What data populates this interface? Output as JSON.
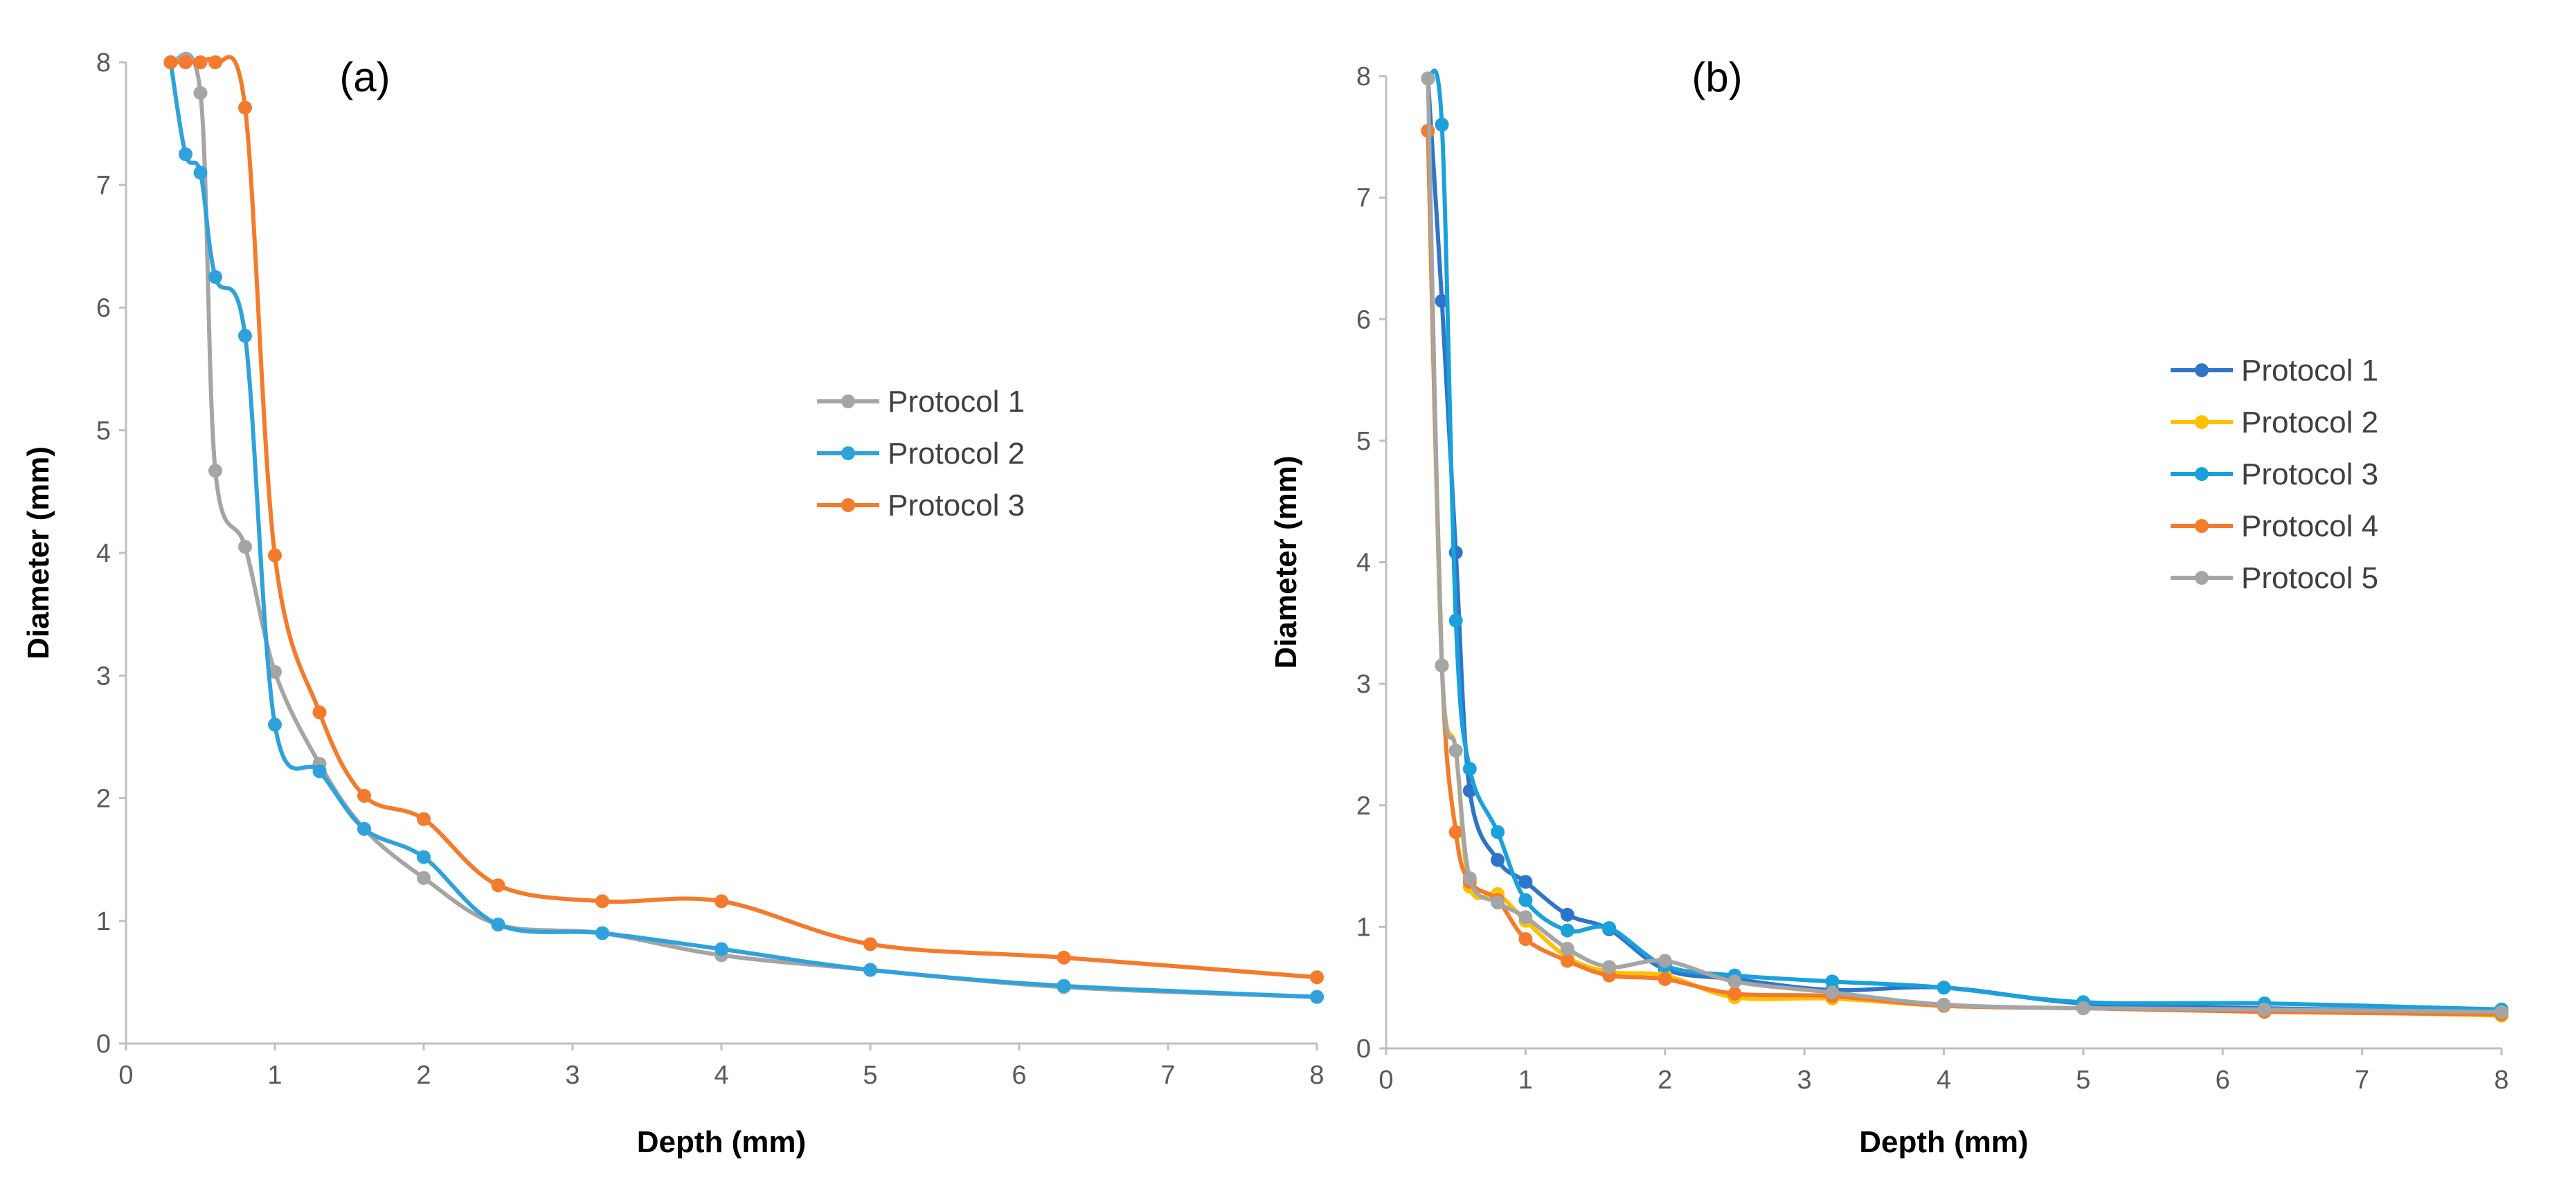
{
  "chart_data": [
    {
      "type": "line",
      "panel_label": "(a)",
      "xlabel": "Depth (mm)",
      "ylabel": "Diameter (mm)",
      "xlim": [
        0,
        8
      ],
      "ylim": [
        0,
        8
      ],
      "xticks": [
        0,
        1,
        2,
        3,
        4,
        5,
        6,
        7,
        8
      ],
      "yticks": [
        0,
        1,
        2,
        3,
        4,
        5,
        6,
        7,
        8
      ],
      "grid": false,
      "legend_position": "right-center",
      "series": [
        {
          "name": "Protocol 1",
          "color": "#A5A5A5",
          "x": [
            0.3,
            0.5,
            0.6,
            0.8,
            1.0,
            1.3,
            1.6,
            2.0,
            2.5,
            3.2,
            4.0,
            5.0,
            6.3,
            8.0
          ],
          "y": [
            8.0,
            7.75,
            4.67,
            4.05,
            3.03,
            2.28,
            1.75,
            1.35,
            0.97,
            0.9,
            0.72,
            0.6,
            0.46,
            0.38
          ]
        },
        {
          "name": "Protocol 2",
          "color": "#2FA2DC",
          "x": [
            0.3,
            0.4,
            0.5,
            0.6,
            0.8,
            1.0,
            1.3,
            1.6,
            2.0,
            2.5,
            3.2,
            4.0,
            5.0,
            6.3,
            8.0
          ],
          "y": [
            8.0,
            7.25,
            7.1,
            6.25,
            5.77,
            2.6,
            2.22,
            1.75,
            1.52,
            0.97,
            0.9,
            0.77,
            0.6,
            0.47,
            0.38
          ]
        },
        {
          "name": "Protocol 3",
          "color": "#F47A2C",
          "x": [
            0.3,
            0.4,
            0.5,
            0.6,
            0.8,
            1.0,
            1.3,
            1.6,
            2.0,
            2.5,
            3.2,
            4.0,
            5.0,
            6.3,
            8.0
          ],
          "y": [
            8.0,
            8.0,
            8.0,
            8.0,
            7.63,
            3.98,
            2.7,
            2.02,
            1.83,
            1.29,
            1.16,
            1.16,
            0.81,
            0.7,
            0.54
          ]
        }
      ]
    },
    {
      "type": "line",
      "panel_label": "(b)",
      "xlabel": "Depth (mm)",
      "ylabel": "Diameter (mm)",
      "xlim": [
        0,
        8
      ],
      "ylim": [
        0,
        8
      ],
      "xticks": [
        0,
        1,
        2,
        3,
        4,
        5,
        6,
        7,
        8
      ],
      "yticks": [
        0,
        1,
        2,
        3,
        4,
        5,
        6,
        7,
        8
      ],
      "grid": false,
      "legend_position": "right-center",
      "series": [
        {
          "name": "Protocol 1",
          "color": "#2E75C9",
          "x": [
            0.3,
            0.4,
            0.5,
            0.6,
            0.8,
            1.0,
            1.3,
            1.6,
            2.0,
            2.5,
            3.2,
            4.0,
            5.0,
            6.3,
            8.0
          ],
          "y": [
            7.98,
            6.15,
            4.08,
            2.12,
            1.55,
            1.37,
            1.1,
            0.98,
            0.65,
            0.57,
            0.48,
            0.5,
            0.37,
            0.33,
            0.3
          ]
        },
        {
          "name": "Protocol 2",
          "color": "#FFC000",
          "x": [
            0.3,
            0.4,
            0.5,
            0.6,
            0.8,
            1.0,
            1.3,
            1.6,
            2.0,
            2.5,
            3.2,
            4.0,
            5.0,
            6.3,
            8.0
          ],
          "y": [
            7.55,
            3.15,
            2.45,
            1.33,
            1.27,
            1.05,
            0.75,
            0.63,
            0.6,
            0.42,
            0.41,
            0.35,
            0.33,
            0.31,
            0.27
          ]
        },
        {
          "name": "Protocol 3",
          "color": "#1AA1DB",
          "x": [
            0.3,
            0.4,
            0.5,
            0.6,
            0.8,
            1.0,
            1.3,
            1.6,
            2.0,
            2.5,
            3.2,
            4.0,
            5.0,
            6.3,
            8.0
          ],
          "y": [
            7.98,
            7.6,
            3.52,
            2.3,
            1.78,
            1.22,
            0.97,
            0.99,
            0.68,
            0.6,
            0.55,
            0.5,
            0.38,
            0.37,
            0.32
          ]
        },
        {
          "name": "Protocol 4",
          "color": "#F47A2C",
          "x": [
            0.3,
            0.4,
            0.5,
            0.6,
            0.8,
            1.0,
            1.3,
            1.6,
            2.0,
            2.5,
            3.2,
            4.0,
            5.0,
            6.3,
            8.0
          ],
          "y": [
            7.55,
            3.15,
            1.78,
            1.37,
            1.22,
            0.9,
            0.72,
            0.6,
            0.57,
            0.45,
            0.43,
            0.35,
            0.33,
            0.3,
            0.28
          ]
        },
        {
          "name": "Protocol 5",
          "color": "#A5A5A5",
          "x": [
            0.3,
            0.4,
            0.5,
            0.6,
            0.8,
            1.0,
            1.3,
            1.6,
            2.0,
            2.5,
            3.2,
            4.0,
            5.0,
            6.3,
            8.0
          ],
          "y": [
            7.98,
            3.15,
            2.45,
            1.4,
            1.2,
            1.08,
            0.82,
            0.67,
            0.72,
            0.55,
            0.46,
            0.36,
            0.33,
            0.32,
            0.3
          ]
        }
      ]
    }
  ]
}
